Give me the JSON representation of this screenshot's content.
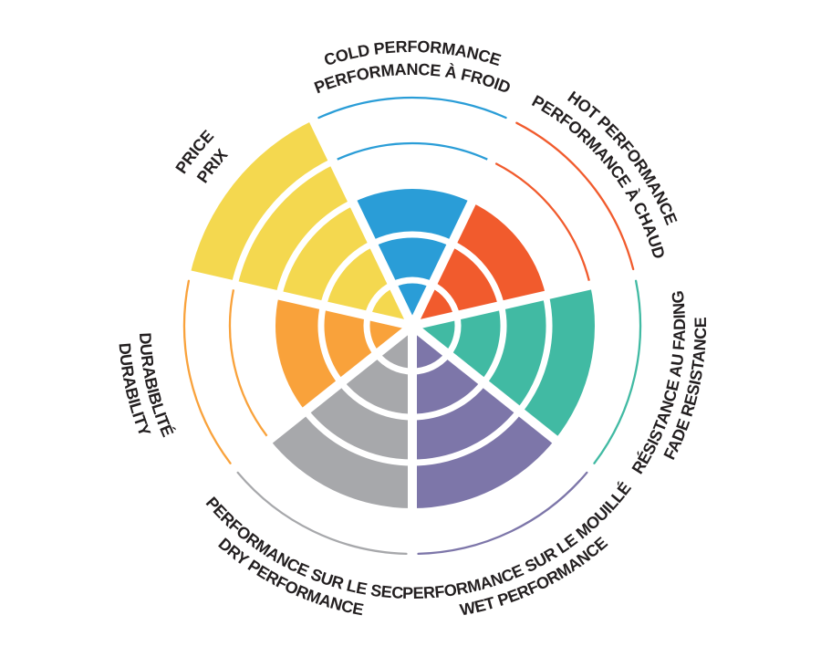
{
  "page": {
    "background": "#FFFFFF",
    "label_text_color": "#231F20"
  },
  "chart_data": {
    "type": "pie",
    "variant": "polar-sector-rating-wheel (coxcomb: each sector filled from center to its rating level)",
    "levels": 5,
    "scale": {
      "min": 0,
      "max": 5
    },
    "grid": "white concentric ring dividers inside fills; thin colored arcs mark unfilled levels",
    "legend_position": "curved bilingual labels around outer rim",
    "sectors": [
      {
        "name": "cold-performance",
        "value": 3,
        "color": "#2A9DD7",
        "label_line1": "COLD PERFORMANCE",
        "label_line2": "PERFORMANCE À FROID"
      },
      {
        "name": "hot-performance",
        "value": 3,
        "color": "#F15B2D",
        "label_line1": "HOT PERFORMANCE",
        "label_line2": "PERFORMANCE À CHAUD"
      },
      {
        "name": "fade-resistance",
        "value": 4,
        "color": "#41BAA3",
        "label_line1": "RÉSISTANCE AU FADING",
        "label_line2": "FADE RESISTANCE"
      },
      {
        "name": "wet-performance",
        "value": 4,
        "color": "#7D76A9",
        "label_line1": "PERFORMANCE SUR LE MOUILLÉ",
        "label_line2": "WET PERFORMANCE"
      },
      {
        "name": "dry-performance",
        "value": 4,
        "color": "#A7A8AB",
        "label_line1": "PERFORMANCE SUR LE SEC",
        "label_line2": "DRY PERFORMANCE"
      },
      {
        "name": "durability",
        "value": 3,
        "color": "#F9A23B",
        "label_line1": "DURABIBLITÉ",
        "label_line2": "DURABILITY"
      },
      {
        "name": "price",
        "value": 5,
        "color": "#F4D84F",
        "label_line1": "PRICE",
        "label_line2": "PRIX"
      }
    ]
  }
}
